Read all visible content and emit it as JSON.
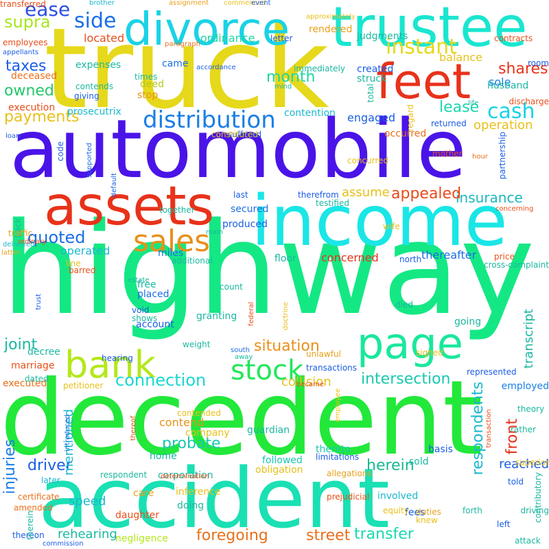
{
  "words": [
    {
      "text": "highway",
      "color": "#14e884",
      "vertical": false
    },
    {
      "text": "automobile",
      "color": "#4a14e8",
      "vertical": false
    },
    {
      "text": "decedent",
      "color": "#22e83a",
      "vertical": false
    },
    {
      "text": "truck",
      "color": "#e6d81a",
      "vertical": false
    },
    {
      "text": "accident",
      "color": "#1ae0b4",
      "vertical": false
    },
    {
      "text": "income",
      "color": "#1ae6e6",
      "vertical": false
    },
    {
      "text": "trustee",
      "color": "#1ae6d0",
      "vertical": false
    },
    {
      "text": "divorce",
      "color": "#1ad2e6",
      "vertical": false
    },
    {
      "text": "assets",
      "color": "#e8321a",
      "vertical": false
    },
    {
      "text": "feet",
      "color": "#e8321a",
      "vertical": false
    },
    {
      "text": "page",
      "color": "#1ae89c",
      "vertical": false
    },
    {
      "text": "bank",
      "color": "#b4e81a",
      "vertical": false
    },
    {
      "text": "sales",
      "color": "#e8901a",
      "vertical": false
    },
    {
      "text": "stock",
      "color": "#22e85a",
      "vertical": false
    },
    {
      "text": "distribution",
      "color": "#1a7ee6",
      "vertical": false
    },
    {
      "text": "instant",
      "color": "#e6d81a",
      "vertical": false
    },
    {
      "text": "cash",
      "color": "#1ad2e6",
      "vertical": false
    },
    {
      "text": "side",
      "color": "#1a6ee6",
      "vertical": false
    },
    {
      "text": "ease",
      "color": "#2a4ee6",
      "vertical": false
    },
    {
      "text": "supra",
      "color": "#a4e81a",
      "vertical": false
    },
    {
      "text": "taxes",
      "color": "#1a5ee6",
      "vertical": false
    },
    {
      "text": "owned",
      "color": "#22c86a",
      "vertical": false
    },
    {
      "text": "payments",
      "color": "#e8c01a",
      "vertical": false
    },
    {
      "text": "month",
      "color": "#1ad8a0",
      "vertical": false
    },
    {
      "text": "shares",
      "color": "#e8321a",
      "vertical": false
    },
    {
      "text": "lease",
      "color": "#1ad8b0",
      "vertical": false
    },
    {
      "text": "quoted",
      "color": "#1a6ee6",
      "vertical": false
    },
    {
      "text": "insurance",
      "color": "#1ab8c0",
      "vertical": false
    },
    {
      "text": "appealed",
      "color": "#e84a1a",
      "vertical": false
    },
    {
      "text": "connection",
      "color": "#1ad8d0",
      "vertical": false
    },
    {
      "text": "situation",
      "color": "#e8901a",
      "vertical": false
    },
    {
      "text": "intersection",
      "color": "#1ac8b0",
      "vertical": false
    },
    {
      "text": "joint",
      "color": "#1ab8a0",
      "vertical": false
    },
    {
      "text": "driver",
      "color": "#1a5ee6",
      "vertical": false
    },
    {
      "text": "probate",
      "color": "#1ac8b0",
      "vertical": false
    },
    {
      "text": "herein",
      "color": "#1ab890",
      "vertical": false
    },
    {
      "text": "front",
      "color": "#e8321a",
      "vertical": true
    },
    {
      "text": "respondents",
      "color": "#1ab8d0",
      "vertical": true
    },
    {
      "text": "injuries",
      "color": "#1a7ee6",
      "vertical": true
    },
    {
      "text": "transfer",
      "color": "#1ad8b0",
      "vertical": false
    },
    {
      "text": "foregoing",
      "color": "#e8701a",
      "vertical": false
    },
    {
      "text": "street",
      "color": "#e8701a",
      "vertical": false
    },
    {
      "text": "rehearing",
      "color": "#1ab8a0",
      "vertical": false
    },
    {
      "text": "negligence",
      "color": "#b4e81a",
      "vertical": false
    },
    {
      "text": "operation",
      "color": "#e8c01a",
      "vertical": false
    },
    {
      "text": "engaged",
      "color": "#1a5ee6",
      "vertical": false
    },
    {
      "text": "located",
      "color": "#e8501a",
      "vertical": false
    },
    {
      "text": "ordinance",
      "color": "#1ad8a0",
      "vertical": false
    },
    {
      "text": "balance",
      "color": "#e8c01a",
      "vertical": false
    },
    {
      "text": "sole",
      "color": "#1a7ee6",
      "vertical": false
    },
    {
      "text": "deceased",
      "color": "#e8701a",
      "vertical": false
    },
    {
      "text": "execution",
      "color": "#e8501a",
      "vertical": false
    },
    {
      "text": "concerned",
      "color": "#e8321a",
      "vertical": false
    },
    {
      "text": "thereafter",
      "color": "#1a6ee6",
      "vertical": false
    },
    {
      "text": "operated",
      "color": "#1ab8d0",
      "vertical": false
    },
    {
      "text": "collision",
      "color": "#e8c01a",
      "vertical": false
    },
    {
      "text": "assume",
      "color": "#e8c01a",
      "vertical": false
    },
    {
      "text": "mentioned",
      "color": "#1ab8d0",
      "vertical": true
    },
    {
      "text": "transcript",
      "color": "#1ab8a0",
      "vertical": true
    },
    {
      "text": "reached",
      "color": "#1a5ee6",
      "vertical": false
    },
    {
      "text": "obligation",
      "color": "#e8c01a",
      "vertical": false
    },
    {
      "text": "followed",
      "color": "#1ac8b0",
      "vertical": false
    },
    {
      "text": "thereto",
      "color": "#1ac8b0",
      "vertical": false
    },
    {
      "text": "contend",
      "color": "#e8901a",
      "vertical": false
    },
    {
      "text": "company",
      "color": "#e8c01a",
      "vertical": false
    },
    {
      "text": "inference",
      "color": "#e8c01a",
      "vertical": false
    },
    {
      "text": "produced",
      "color": "#1a5ee6",
      "vertical": false
    },
    {
      "text": "secured",
      "color": "#1a6ee6",
      "vertical": false
    },
    {
      "text": "expenses",
      "color": "#1ab8a0",
      "vertical": false
    },
    {
      "text": "contention",
      "color": "#1ab8d0",
      "vertical": false
    },
    {
      "text": "occurred",
      "color": "#e8701a",
      "vertical": false
    },
    {
      "text": "prosecutrix",
      "color": "#1ab8d0",
      "vertical": false
    },
    {
      "text": "came",
      "color": "#1a6ee6",
      "vertical": false
    },
    {
      "text": "deed",
      "color": "#b4c81a",
      "vertical": false
    },
    {
      "text": "stop",
      "color": "#e8901a",
      "vertical": false
    },
    {
      "text": "husband",
      "color": "#1ab8a0",
      "vertical": false
    },
    {
      "text": "judgments",
      "color": "#1ab8a0",
      "vertical": false
    },
    {
      "text": "rendered",
      "color": "#e8a01a",
      "vertical": false
    },
    {
      "text": "struck",
      "color": "#1ab8a0",
      "vertical": false
    },
    {
      "text": "created",
      "color": "#1a5ee6",
      "vertical": false
    },
    {
      "text": "miles",
      "color": "#1a6ee6",
      "vertical": false
    },
    {
      "text": "floor",
      "color": "#1ab8a0",
      "vertical": false
    },
    {
      "text": "wife",
      "color": "#e8c01a",
      "vertical": false
    },
    {
      "text": "north",
      "color": "#1a5ee6",
      "vertical": false
    },
    {
      "text": "died",
      "color": "#1ab8a0",
      "vertical": false
    },
    {
      "text": "going",
      "color": "#1ab8a0",
      "vertical": false
    },
    {
      "text": "represented",
      "color": "#1a5ee6",
      "vertical": false
    },
    {
      "text": "employed",
      "color": "#1a7ee6",
      "vertical": false
    },
    {
      "text": "theory",
      "color": "#1ab8a0",
      "vertical": false
    },
    {
      "text": "rather",
      "color": "#1ab8a0",
      "vertical": false
    },
    {
      "text": "basis",
      "color": "#1a5ee6",
      "vertical": false
    },
    {
      "text": "sold",
      "color": "#1ab8a0",
      "vertical": false
    },
    {
      "text": "fees",
      "color": "#1a5ee6",
      "vertical": false
    },
    {
      "text": "involved",
      "color": "#1ab8d0",
      "vertical": false
    },
    {
      "text": "guardian",
      "color": "#1ab8a0",
      "vertical": false
    },
    {
      "text": "home",
      "color": "#1ab8a0",
      "vertical": false
    },
    {
      "text": "corporation",
      "color": "#1ab8a0",
      "vertical": false
    },
    {
      "text": "doing",
      "color": "#1ab8a0",
      "vertical": false
    },
    {
      "text": "speed",
      "color": "#1ab8d0",
      "vertical": false
    },
    {
      "text": "daughter",
      "color": "#e8501a",
      "vertical": false
    },
    {
      "text": "care",
      "color": "#e8a01a",
      "vertical": false
    },
    {
      "text": "decree",
      "color": "#1ab8a0",
      "vertical": false
    },
    {
      "text": "marriage",
      "color": "#e8501a",
      "vertical": false
    },
    {
      "text": "executed",
      "color": "#e8701a",
      "vertical": false
    },
    {
      "text": "dated",
      "color": "#1ab8a0",
      "vertical": false
    },
    {
      "text": "account",
      "color": "#1a5ee6",
      "vertical": false
    },
    {
      "text": "granting",
      "color": "#1ab8a0",
      "vertical": false
    },
    {
      "text": "placed",
      "color": "#1a6ee6",
      "vertical": false
    },
    {
      "text": "free",
      "color": "#1ab8a0",
      "vertical": false
    },
    {
      "text": "count",
      "color": "#1ab8a0",
      "vertical": false
    },
    {
      "text": "weight",
      "color": "#1ab8a0",
      "vertical": false
    },
    {
      "text": "hearing",
      "color": "#1a5ee6",
      "vertical": false
    },
    {
      "text": "thereon",
      "color": "#1a5ee6",
      "vertical": false
    },
    {
      "text": "contributory",
      "color": "#1ab8a0",
      "vertical": true
    },
    {
      "text": "limitations",
      "color": "#1a5ee6",
      "vertical": false
    },
    {
      "text": "allegations",
      "color": "#e8a01a",
      "vertical": false
    },
    {
      "text": "duties",
      "color": "#e8a01a",
      "vertical": false
    },
    {
      "text": "forth",
      "color": "#1ab8a0",
      "vertical": false
    },
    {
      "text": "left",
      "color": "#1a5ee6",
      "vertical": false
    },
    {
      "text": "attack",
      "color": "#1ab8a0",
      "vertical": false
    },
    {
      "text": "told",
      "color": "#1a5ee6",
      "vertical": false
    },
    {
      "text": "driving",
      "color": "#1ab8a0",
      "vertical": false
    },
    {
      "text": "superior",
      "color": "#e8c01a",
      "vertical": false
    },
    {
      "text": "later",
      "color": "#1ab8d0",
      "vertical": false
    },
    {
      "text": "certificate",
      "color": "#e8701a",
      "vertical": false
    },
    {
      "text": "amended",
      "color": "#e8701a",
      "vertical": false
    },
    {
      "text": "therein",
      "color": "#1ab8a0",
      "vertical": true
    },
    {
      "text": "respondent",
      "color": "#1ab8a0",
      "vertical": false
    },
    {
      "text": "commission",
      "color": "#1a5ee6",
      "vertical": false
    },
    {
      "text": "prejudicial",
      "color": "#e8501a",
      "vertical": false
    },
    {
      "text": "equity",
      "color": "#e8c01a",
      "vertical": false
    },
    {
      "text": "knew",
      "color": "#e8c01a",
      "vertical": false
    },
    {
      "text": "determination",
      "color": "#e8501a",
      "vertical": false
    },
    {
      "text": "introduced",
      "color": "#1a6ee6",
      "vertical": true
    },
    {
      "text": "thereof",
      "color": "#e8501a",
      "vertical": true
    },
    {
      "text": "contended",
      "color": "#e8c01a",
      "vertical": false
    },
    {
      "text": "transaction",
      "color": "#e8501a",
      "vertical": true
    },
    {
      "text": "employee",
      "color": "#e8c01a",
      "vertical": true
    },
    {
      "text": "unlawful",
      "color": "#e8a01a",
      "vertical": false
    },
    {
      "text": "transactions",
      "color": "#1a5ee6",
      "vertical": false
    },
    {
      "text": "became",
      "color": "#e8501a",
      "vertical": false
    },
    {
      "text": "petitioner",
      "color": "#e8c01a",
      "vertical": false
    },
    {
      "text": "signed",
      "color": "#e8c01a",
      "vertical": false
    },
    {
      "text": "south",
      "color": "#1a6ee6",
      "vertical": false
    },
    {
      "text": "away",
      "color": "#1ab8a0",
      "vertical": false
    },
    {
      "text": "federal",
      "color": "#e8501a",
      "vertical": true
    },
    {
      "text": "doctrine",
      "color": "#e8c01a",
      "vertical": true
    },
    {
      "text": "trust",
      "color": "#1a5ee6",
      "vertical": true
    },
    {
      "text": "void",
      "color": "#1a5ee6",
      "vertical": false
    },
    {
      "text": "shows",
      "color": "#1ab8a0",
      "vertical": false
    },
    {
      "text": "barred",
      "color": "#e8501a",
      "vertical": false
    },
    {
      "text": "estate",
      "color": "#1ab8a0",
      "vertical": false
    },
    {
      "text": "line",
      "color": "#e8c01a",
      "vertical": false
    },
    {
      "text": "additional",
      "color": "#1ab8a0",
      "vertical": false
    },
    {
      "text": "cross-complaint",
      "color": "#1ab8a0",
      "vertical": false
    },
    {
      "text": "price",
      "color": "#e8501a",
      "vertical": false
    },
    {
      "text": "together",
      "color": "#1ab8a0",
      "vertical": false
    },
    {
      "text": "main",
      "color": "#1ab8a0",
      "vertical": false
    },
    {
      "text": "concerning",
      "color": "#e8501a",
      "vertical": false
    },
    {
      "text": "back",
      "color": "#1ab8a0",
      "vertical": true
    },
    {
      "text": "traffic",
      "color": "#e8a01a",
      "vertical": false
    },
    {
      "text": "delivered",
      "color": "#1ab8d0",
      "vertical": false
    },
    {
      "text": "ordinary",
      "color": "#e8501a",
      "vertical": false
    },
    {
      "text": "latter",
      "color": "#e8a01a",
      "vertical": false
    },
    {
      "text": "loan",
      "color": "#1a5ee6",
      "vertical": false
    },
    {
      "text": "code",
      "color": "#1a5ee6",
      "vertical": true
    },
    {
      "text": "supported",
      "color": "#1a6ee6",
      "vertical": true
    },
    {
      "text": "default",
      "color": "#1a5ee6",
      "vertical": true
    },
    {
      "text": "last",
      "color": "#1a5ee6",
      "vertical": false
    },
    {
      "text": "therefrom",
      "color": "#1a5ee6",
      "vertical": false
    },
    {
      "text": "testified",
      "color": "#1ab8a0",
      "vertical": false
    },
    {
      "text": "concurred",
      "color": "#e8c01a",
      "vertical": false
    },
    {
      "text": "hour",
      "color": "#e8701a",
      "vertical": false
    },
    {
      "text": "mother",
      "color": "#e8501a",
      "vertical": false
    },
    {
      "text": "partnership",
      "color": "#1a5ee6",
      "vertical": true
    },
    {
      "text": "suffered",
      "color": "#1a5ee6",
      "vertical": false
    },
    {
      "text": "constituted",
      "color": "#e8c01a",
      "vertical": false
    },
    {
      "text": "returned",
      "color": "#1a5ee6",
      "vertical": false
    },
    {
      "text": "life",
      "color": "#1ab8a0",
      "vertical": false
    },
    {
      "text": "regard",
      "color": "#e8c01a",
      "vertical": true
    },
    {
      "text": "discharge",
      "color": "#e8501a",
      "vertical": false
    },
    {
      "text": "room",
      "color": "#1a5ee6",
      "vertical": false
    },
    {
      "text": "total",
      "color": "#1ab8a0",
      "vertical": true
    },
    {
      "text": "mind",
      "color": "#1ab8a0",
      "vertical": false
    },
    {
      "text": "immediately",
      "color": "#1ab8a0",
      "vertical": false
    },
    {
      "text": "times",
      "color": "#1ab8a0",
      "vertical": false
    },
    {
      "text": "accordance",
      "color": "#1a5ee6",
      "vertical": false
    },
    {
      "text": "giving",
      "color": "#1a5ee6",
      "vertical": false
    },
    {
      "text": "contends",
      "color": "#1ab8a0",
      "vertical": false
    },
    {
      "text": "paragraph",
      "color": "#e8701a",
      "vertical": false
    },
    {
      "text": "letter",
      "color": "#1a5ee6",
      "vertical": false
    },
    {
      "text": "employees",
      "color": "#e8501a",
      "vertical": false
    },
    {
      "text": "appellants",
      "color": "#1a5ee6",
      "vertical": false
    },
    {
      "text": "brother",
      "color": "#1ab8d0",
      "vertical": false
    },
    {
      "text": "assignment",
      "color": "#e8a01a",
      "vertical": false
    },
    {
      "text": "commenced",
      "color": "#e8c01a",
      "vertical": false
    },
    {
      "text": "event",
      "color": "#1a5ee6",
      "vertical": false
    },
    {
      "text": "approximately",
      "color": "#e8c01a",
      "vertical": false
    },
    {
      "text": "contracts",
      "color": "#e8501a",
      "vertical": false
    },
    {
      "text": "transferred",
      "color": "#e8501a",
      "vertical": false
    }
  ]
}
